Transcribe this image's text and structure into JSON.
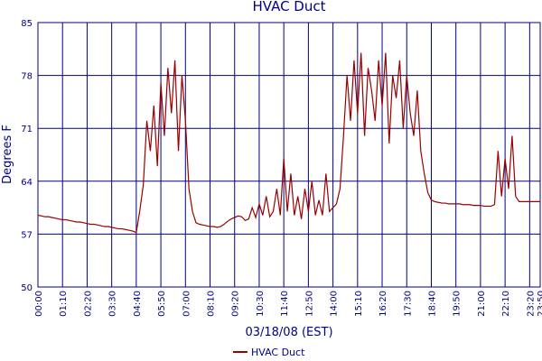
{
  "chart_data": {
    "type": "line",
    "title": "HVAC Duct",
    "ylabel": "Degrees F",
    "xlabel": "03/18/08 (EST)",
    "x": [
      "00:00",
      "00:10",
      "00:20",
      "00:30",
      "00:40",
      "00:50",
      "01:00",
      "01:10",
      "01:20",
      "01:30",
      "01:40",
      "01:50",
      "02:00",
      "02:10",
      "02:20",
      "02:30",
      "02:40",
      "02:50",
      "03:00",
      "03:10",
      "03:20",
      "03:30",
      "03:40",
      "03:50",
      "04:00",
      "04:10",
      "04:20",
      "04:30",
      "04:40",
      "04:50",
      "05:00",
      "05:10",
      "05:20",
      "05:30",
      "05:40",
      "05:50",
      "06:00",
      "06:10",
      "06:20",
      "06:30",
      "06:40",
      "06:50",
      "07:00",
      "07:10",
      "07:20",
      "07:30",
      "07:40",
      "07:50",
      "08:00",
      "08:10",
      "08:20",
      "08:30",
      "08:40",
      "08:50",
      "09:00",
      "09:10",
      "09:20",
      "09:30",
      "09:40",
      "09:50",
      "10:00",
      "10:10",
      "10:20",
      "10:30",
      "10:40",
      "10:50",
      "11:00",
      "11:10",
      "11:20",
      "11:30",
      "11:40",
      "11:50",
      "12:00",
      "12:10",
      "12:20",
      "12:30",
      "12:40",
      "12:50",
      "13:00",
      "13:10",
      "13:20",
      "13:30",
      "13:40",
      "13:50",
      "14:00",
      "14:10",
      "14:20",
      "14:30",
      "14:40",
      "14:50",
      "15:00",
      "15:10",
      "15:20",
      "15:30",
      "15:40",
      "15:50",
      "16:00",
      "16:10",
      "16:20",
      "16:30",
      "16:40",
      "16:50",
      "17:00",
      "17:10",
      "17:20",
      "17:30",
      "17:40",
      "17:50",
      "18:00",
      "18:10",
      "18:20",
      "18:30",
      "18:40",
      "18:50",
      "19:00",
      "19:10",
      "19:20",
      "19:30",
      "19:40",
      "19:50",
      "20:00",
      "20:10",
      "20:20",
      "20:30",
      "20:40",
      "20:50",
      "21:00",
      "21:10",
      "21:20",
      "21:30",
      "21:40",
      "21:50",
      "22:00",
      "22:10",
      "22:20",
      "22:30",
      "22:40",
      "22:50",
      "23:00",
      "23:10",
      "23:20",
      "23:30",
      "23:40",
      "23:50"
    ],
    "series": [
      {
        "name": "HVAC Duct",
        "color": "#990000",
        "values": [
          59.5,
          59.4,
          59.3,
          59.3,
          59.2,
          59.1,
          59.0,
          58.9,
          58.9,
          58.8,
          58.7,
          58.6,
          58.6,
          58.5,
          58.4,
          58.3,
          58.3,
          58.2,
          58.1,
          58.0,
          58.0,
          57.9,
          57.8,
          57.7,
          57.7,
          57.6,
          57.5,
          57.4,
          57.2,
          60.1,
          63.5,
          72,
          68,
          74,
          66,
          77,
          70,
          79,
          73,
          80,
          68,
          78,
          72,
          63,
          60,
          58.5,
          58.3,
          58.2,
          58.1,
          58.0,
          58.0,
          57.9,
          58.0,
          58.3,
          58.7,
          59.0,
          59.2,
          59.4,
          59.3,
          58.8,
          59.0,
          60.5,
          59.2,
          61,
          59.5,
          62,
          59.3,
          60,
          63,
          59.5,
          67,
          60,
          65,
          59.5,
          62,
          59,
          63,
          60,
          64,
          59.5,
          61.5,
          59.5,
          65,
          60,
          60.5,
          61,
          63,
          70,
          78,
          72,
          80,
          73,
          81,
          70,
          79,
          76,
          72,
          80,
          74,
          81,
          69,
          78,
          75,
          80,
          71,
          78,
          73,
          70,
          76,
          68,
          65,
          62.5,
          61.5,
          61.3,
          61.2,
          61.1,
          61.1,
          61,
          61,
          61,
          61,
          60.9,
          60.9,
          60.9,
          60.8,
          60.8,
          60.8,
          60.7,
          60.7,
          60.7,
          60.9,
          68,
          62,
          67,
          63,
          70,
          62,
          61.3,
          61.3,
          61.3,
          61.3,
          61.3,
          61.3,
          61.3
        ]
      }
    ],
    "xlim": [
      "00:00",
      "23:50"
    ],
    "xticks": [
      "00:00",
      "01:10",
      "02:20",
      "03:30",
      "04:40",
      "05:50",
      "07:00",
      "08:10",
      "09:20",
      "10:30",
      "11:40",
      "12:50",
      "14:00",
      "15:10",
      "16:20",
      "17:30",
      "18:40",
      "19:50",
      "21:00",
      "22:10",
      "23:20",
      "23:50"
    ],
    "ylim": [
      50,
      85
    ],
    "yticks": [
      50,
      57,
      64,
      71,
      78,
      85
    ],
    "grid": true,
    "legend": "bottom"
  }
}
